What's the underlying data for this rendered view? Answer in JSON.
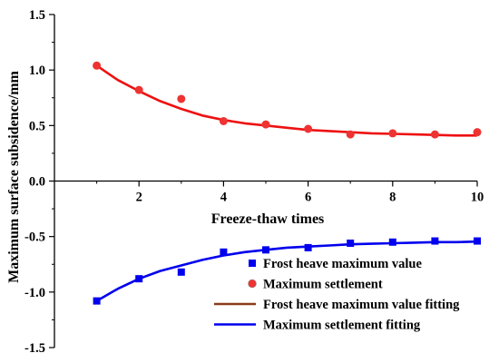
{
  "chart_data": {
    "type": "scatter",
    "title": "",
    "xlabel": "Freeze-thaw times",
    "ylabel": "Maximum surface subsidence/mm",
    "xlim": [
      0,
      10
    ],
    "ylim": [
      -1.5,
      1.5
    ],
    "x_ticks": [
      2,
      4,
      6,
      8,
      10
    ],
    "x_tick_labels": [
      "2",
      "4",
      "6",
      "8",
      "10"
    ],
    "y_ticks": [
      -1.5,
      -1.0,
      -0.5,
      0.0,
      0.5,
      1.0,
      1.5
    ],
    "y_tick_labels": [
      "-1.5",
      "-1.0",
      "-0.5",
      "0.0",
      "0.5",
      "1.0",
      "1.5"
    ],
    "grid": false,
    "legend_position": "bottom-right",
    "series": [
      {
        "name": "Frost heave maximum value",
        "kind": "points",
        "marker": "square",
        "color": "#0000ee",
        "x": [
          1,
          2,
          3,
          4,
          5,
          6,
          7,
          8,
          9,
          10
        ],
        "y": [
          -1.08,
          -0.88,
          -0.82,
          -0.64,
          -0.62,
          -0.6,
          -0.56,
          -0.55,
          -0.54,
          -0.54
        ]
      },
      {
        "name": "Maximum settlement",
        "kind": "points",
        "marker": "circle",
        "color": "#ee3333",
        "x": [
          1,
          2,
          3,
          4,
          5,
          6,
          7,
          8,
          9,
          10
        ],
        "y": [
          1.04,
          0.82,
          0.74,
          0.54,
          0.51,
          0.47,
          0.42,
          0.43,
          0.42,
          0.44
        ]
      },
      {
        "name": "Frost heave maximum value fitting",
        "kind": "line",
        "color": "#ee1111",
        "legend_color": "#8b3a1a",
        "x": [
          1,
          1.5,
          2,
          2.5,
          3,
          3.5,
          4,
          4.5,
          5,
          5.5,
          6,
          6.5,
          7,
          7.5,
          8,
          8.5,
          9,
          9.5,
          10
        ],
        "y": [
          1.04,
          0.91,
          0.81,
          0.72,
          0.65,
          0.59,
          0.55,
          0.52,
          0.5,
          0.48,
          0.46,
          0.45,
          0.44,
          0.43,
          0.425,
          0.42,
          0.415,
          0.41,
          0.41
        ]
      },
      {
        "name": "Maximum settlement fitting",
        "kind": "line",
        "color": "#0000ee",
        "x": [
          1,
          1.5,
          2,
          2.5,
          3,
          3.5,
          4,
          4.5,
          5,
          5.5,
          6,
          6.5,
          7,
          7.5,
          8,
          8.5,
          9,
          9.5,
          10
        ],
        "y": [
          -1.08,
          -0.97,
          -0.88,
          -0.81,
          -0.76,
          -0.71,
          -0.67,
          -0.64,
          -0.62,
          -0.6,
          -0.59,
          -0.58,
          -0.57,
          -0.565,
          -0.56,
          -0.555,
          -0.55,
          -0.55,
          -0.545
        ]
      }
    ]
  }
}
